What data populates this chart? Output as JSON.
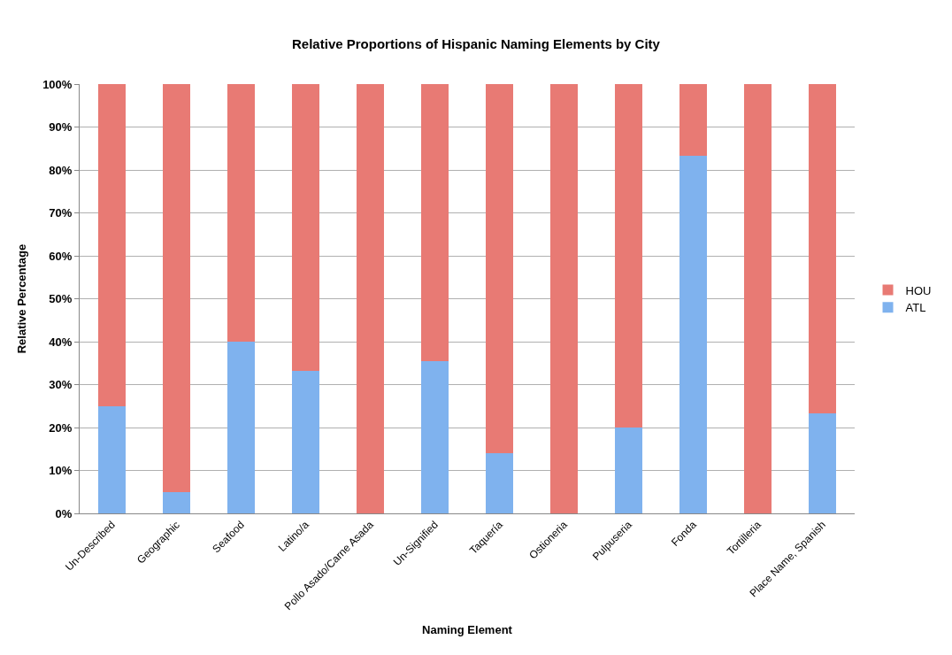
{
  "chart_data": {
    "type": "bar",
    "title": "Relative Proportions of Hispanic Naming Elements by City",
    "xlabel": "Naming Element",
    "ylabel": "Relative Percentage",
    "categories": [
      "Un-Described",
      "Geographic",
      "Seafood",
      "Latino/a",
      "Pollo Asado/Carne Asada",
      "Un-Signified",
      "Taquería",
      "Ostioneria",
      "Pulpuseria",
      "Fonda",
      "Tortilleria",
      "Place Name, Spanish"
    ],
    "stacked": true,
    "series": [
      {
        "name": "ATL",
        "color": "#7fb2ee",
        "values": [
          25,
          5,
          40,
          33.3,
          0,
          35.5,
          14,
          0,
          20,
          83.3,
          0,
          23.3
        ]
      },
      {
        "name": "HOU",
        "color": "#e87a74",
        "values": [
          75,
          95,
          60,
          66.7,
          100,
          64.5,
          86,
          100,
          80,
          16.7,
          100,
          76.7
        ]
      }
    ],
    "ylim": [
      0,
      100
    ],
    "yticks": [
      {
        "value": 0,
        "label": "0%"
      },
      {
        "value": 10,
        "label": "10%"
      },
      {
        "value": 20,
        "label": "20%"
      },
      {
        "value": 30,
        "label": "30%"
      },
      {
        "value": 40,
        "label": "40%"
      },
      {
        "value": 50,
        "label": "50%"
      },
      {
        "value": 60,
        "label": "60%"
      },
      {
        "value": 70,
        "label": "70%"
      },
      {
        "value": 80,
        "label": "80%"
      },
      {
        "value": 90,
        "label": "90%"
      },
      {
        "value": 100,
        "label": "100%"
      }
    ],
    "grid": "y",
    "legend": "right"
  }
}
